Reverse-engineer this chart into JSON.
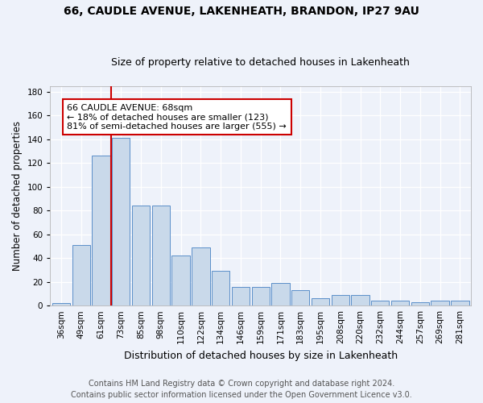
{
  "title": "66, CAUDLE AVENUE, LAKENHEATH, BRANDON, IP27 9AU",
  "subtitle": "Size of property relative to detached houses in Lakenheath",
  "xlabel": "Distribution of detached houses by size in Lakenheath",
  "ylabel": "Number of detached properties",
  "categories": [
    "36sqm",
    "49sqm",
    "61sqm",
    "73sqm",
    "85sqm",
    "98sqm",
    "110sqm",
    "122sqm",
    "134sqm",
    "146sqm",
    "159sqm",
    "171sqm",
    "183sqm",
    "195sqm",
    "208sqm",
    "220sqm",
    "232sqm",
    "244sqm",
    "257sqm",
    "269sqm",
    "281sqm"
  ],
  "values": [
    2,
    51,
    126,
    141,
    84,
    84,
    42,
    49,
    29,
    16,
    16,
    19,
    13,
    6,
    9,
    9,
    4,
    4,
    3,
    4,
    4
  ],
  "bar_color": "#c9d9ea",
  "bar_edge_color": "#5b8fc9",
  "vline_position": 2.5,
  "annotation_text_line1": "66 CAUDLE AVENUE: 68sqm",
  "annotation_text_line2": "← 18% of detached houses are smaller (123)",
  "annotation_text_line3": "81% of semi-detached houses are larger (555) →",
  "vline_color": "#cc0000",
  "annotation_box_color": "#ffffff",
  "annotation_box_edge": "#cc0000",
  "footer1": "Contains HM Land Registry data © Crown copyright and database right 2024.",
  "footer2": "Contains public sector information licensed under the Open Government Licence v3.0.",
  "ylim": [
    0,
    185
  ],
  "background_color": "#eef2fa",
  "grid_color": "#ffffff",
  "title_fontsize": 10,
  "subtitle_fontsize": 9,
  "ylabel_fontsize": 8.5,
  "xlabel_fontsize": 9,
  "tick_fontsize": 7.5,
  "annotation_fontsize": 8,
  "footer_fontsize": 7
}
